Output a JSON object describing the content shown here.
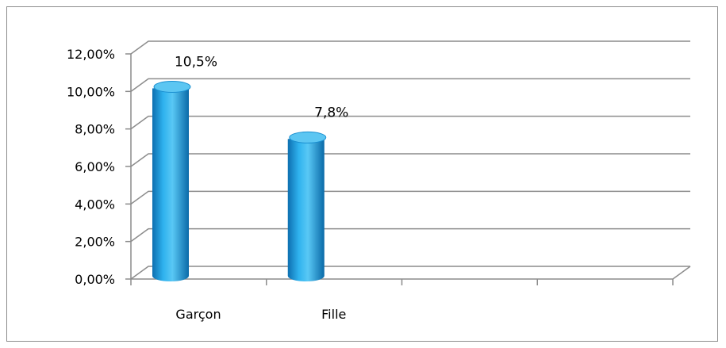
{
  "chart_data": {
    "type": "bar",
    "style": "3d-cylinder",
    "categories": [
      "Garçon",
      "Fille"
    ],
    "values": [
      0.105,
      0.078
    ],
    "data_labels": [
      "10,5%",
      "7,8%"
    ],
    "ylim": [
      0,
      0.12
    ],
    "yticks": [
      0,
      0.02,
      0.04,
      0.06,
      0.08,
      0.1,
      0.12
    ],
    "ytick_labels": [
      "0,00%",
      "2,00%",
      "4,00%",
      "6,00%",
      "8,00%",
      "10,00%",
      "12,00%"
    ],
    "category_slots": 4,
    "grid": true,
    "legend": "none",
    "title": "",
    "xlabel": "",
    "ylabel": "",
    "colors": {
      "bar_fill": "#1a9fe0",
      "bar_top": "#5cc6f2",
      "gridline": "#8c8c8c",
      "border": "#8c8c8c"
    }
  }
}
